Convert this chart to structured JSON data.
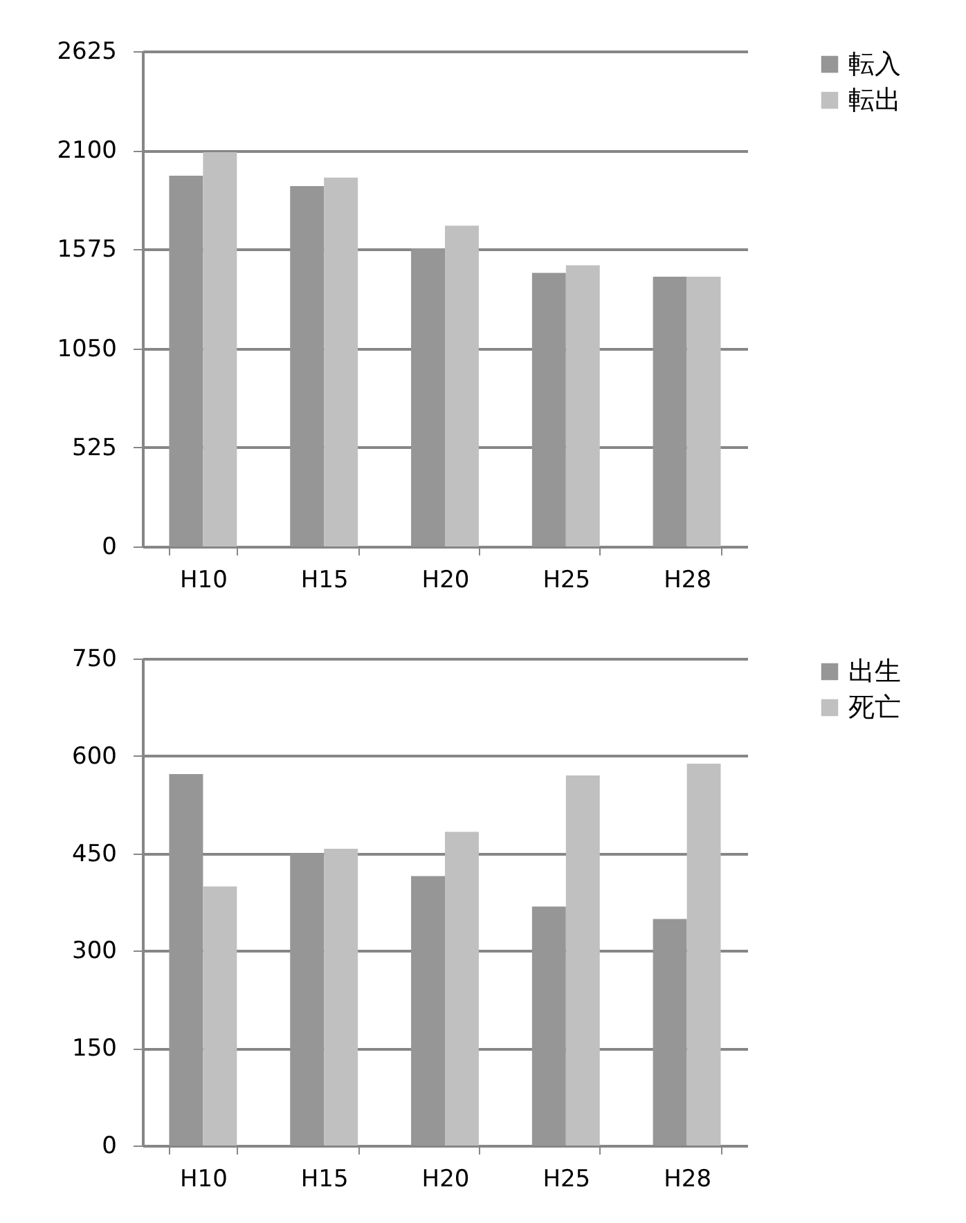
{
  "chart_data": [
    {
      "type": "bar",
      "categories": [
        "H10",
        "H15",
        "H20",
        "H25",
        "H28"
      ],
      "series": [
        {
          "name": "転入",
          "color": "#969696",
          "values": [
            1965,
            1910,
            1580,
            1450,
            1430
          ]
        },
        {
          "name": "転出",
          "color": "#c0c0c0",
          "values": [
            2090,
            1955,
            1700,
            1490,
            1430
          ]
        }
      ],
      "ylim": [
        0,
        2625
      ],
      "yticks": [
        0,
        525,
        1050,
        1575,
        2100,
        2625
      ],
      "grid": "y",
      "legend": "right"
    },
    {
      "type": "bar",
      "categories": [
        "H10",
        "H15",
        "H20",
        "H25",
        "H28"
      ],
      "series": [
        {
          "name": "出生",
          "color": "#969696",
          "values": [
            572,
            450,
            415,
            368,
            349
          ]
        },
        {
          "name": "死亡",
          "color": "#c0c0c0",
          "values": [
            399,
            457,
            483,
            570,
            588
          ]
        }
      ],
      "ylim": [
        0,
        750
      ],
      "yticks": [
        0,
        150,
        300,
        450,
        600,
        750
      ],
      "grid": "y",
      "legend": "right"
    }
  ]
}
